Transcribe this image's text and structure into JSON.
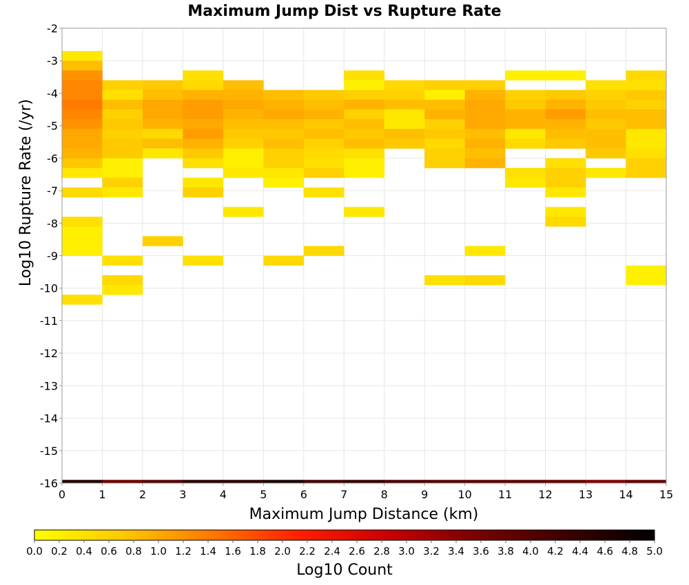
{
  "chart_data": {
    "type": "heatmap",
    "title": "Maximum Jump Dist vs Rupture Rate",
    "xlabel": "Maximum Jump Distance (km)",
    "ylabel": "Log10 Rupture Rate (/yr)",
    "xlim": [
      0,
      15
    ],
    "ylim": [
      -16,
      -2
    ],
    "x_ticks": [
      "0",
      "1",
      "2",
      "3",
      "4",
      "5",
      "6",
      "7",
      "8",
      "9",
      "10",
      "11",
      "12",
      "13",
      "14",
      "15"
    ],
    "y_ticks": [
      "-2",
      "-3",
      "-4",
      "-5",
      "-6",
      "-7",
      "-8",
      "-9",
      "-10",
      "-11",
      "-12",
      "-13",
      "-14",
      "-15",
      "-16"
    ],
    "x_bin_width": 1,
    "y_bin_width": 0.3,
    "grid": true,
    "colorbar": {
      "label": "Log10 Count",
      "range": [
        0,
        5
      ],
      "colors": [
        "#ffff00",
        "#ffc800",
        "#ff7800",
        "#ff1e00",
        "#c80000",
        "#780000",
        "#3c0000",
        "#000000"
      ],
      "ticks": [
        "0.0",
        "0.2",
        "0.4",
        "0.6",
        "0.8",
        "1.0",
        "1.2",
        "1.4",
        "1.6",
        "1.8",
        "2.0",
        "2.2",
        "2.4",
        "2.6",
        "2.8",
        "3.0",
        "3.2",
        "3.4",
        "3.6",
        "3.8",
        "4.0",
        "4.2",
        "4.4",
        "4.6",
        "4.8",
        "5.0"
      ]
    },
    "cells": [
      [
        0,
        -3.0,
        0.3
      ],
      [
        0,
        -3.3,
        0.8
      ],
      [
        0,
        -3.6,
        1.2
      ],
      [
        0,
        -3.9,
        1.3
      ],
      [
        0,
        -4.2,
        1.3
      ],
      [
        0,
        -4.5,
        1.4
      ],
      [
        0,
        -4.8,
        1.3
      ],
      [
        0,
        -5.1,
        1.2
      ],
      [
        0,
        -5.4,
        1.0
      ],
      [
        0,
        -5.7,
        1.0
      ],
      [
        0,
        -6.0,
        0.9
      ],
      [
        0,
        -6.3,
        0.7
      ],
      [
        0,
        -6.6,
        0.3
      ],
      [
        0,
        -7.2,
        0.5
      ],
      [
        0,
        -8.1,
        0.4
      ],
      [
        0,
        -8.4,
        0.2
      ],
      [
        0,
        -8.7,
        0.2
      ],
      [
        0,
        -9.0,
        0.2
      ],
      [
        0,
        -10.5,
        0.4
      ],
      [
        1,
        -3.9,
        0.6
      ],
      [
        1,
        -4.2,
        0.4
      ],
      [
        1,
        -4.5,
        0.8
      ],
      [
        1,
        -4.8,
        0.6
      ],
      [
        1,
        -5.1,
        0.7
      ],
      [
        1,
        -5.4,
        0.6
      ],
      [
        1,
        -5.7,
        0.7
      ],
      [
        1,
        -6.0,
        0.7
      ],
      [
        1,
        -6.3,
        0.2
      ],
      [
        1,
        -6.6,
        0.2
      ],
      [
        1,
        -6.9,
        0.6
      ],
      [
        1,
        -7.2,
        0.3
      ],
      [
        1,
        -9.3,
        0.4
      ],
      [
        1,
        -9.9,
        0.5
      ],
      [
        1,
        -10.2,
        0.3
      ],
      [
        2,
        -3.9,
        0.7
      ],
      [
        2,
        -4.2,
        0.8
      ],
      [
        2,
        -4.5,
        1.0
      ],
      [
        2,
        -4.8,
        1.0
      ],
      [
        2,
        -5.1,
        0.9
      ],
      [
        2,
        -5.4,
        0.5
      ],
      [
        2,
        -5.7,
        0.8
      ],
      [
        2,
        -6.0,
        0.3
      ],
      [
        2,
        -8.7,
        0.6
      ],
      [
        3,
        -3.6,
        0.4
      ],
      [
        3,
        -3.9,
        0.5
      ],
      [
        3,
        -4.2,
        0.9
      ],
      [
        3,
        -4.5,
        1.1
      ],
      [
        3,
        -4.8,
        1.1
      ],
      [
        3,
        -5.1,
        1.0
      ],
      [
        3,
        -5.4,
        1.1
      ],
      [
        3,
        -5.7,
        0.9
      ],
      [
        3,
        -6.0,
        0.7
      ],
      [
        3,
        -6.3,
        0.4
      ],
      [
        3,
        -6.9,
        0.3
      ],
      [
        3,
        -7.2,
        0.6
      ],
      [
        3,
        -9.3,
        0.4
      ],
      [
        4,
        -3.9,
        0.8
      ],
      [
        4,
        -4.2,
        0.9
      ],
      [
        4,
        -4.5,
        1.0
      ],
      [
        4,
        -4.8,
        0.9
      ],
      [
        4,
        -5.1,
        0.8
      ],
      [
        4,
        -5.4,
        0.7
      ],
      [
        4,
        -5.7,
        0.6
      ],
      [
        4,
        -6.0,
        0.2
      ],
      [
        4,
        -6.3,
        0.2
      ],
      [
        4,
        -6.6,
        0.3
      ],
      [
        4,
        -7.8,
        0.3
      ],
      [
        5,
        -4.2,
        0.8
      ],
      [
        5,
        -4.5,
        0.9
      ],
      [
        5,
        -4.8,
        1.0
      ],
      [
        5,
        -5.1,
        0.8
      ],
      [
        5,
        -5.4,
        0.7
      ],
      [
        5,
        -5.7,
        0.8
      ],
      [
        5,
        -6.0,
        0.6
      ],
      [
        5,
        -6.3,
        0.6
      ],
      [
        5,
        -6.6,
        0.3
      ],
      [
        5,
        -6.9,
        0.2
      ],
      [
        5,
        -9.3,
        0.5
      ],
      [
        6,
        -4.2,
        0.7
      ],
      [
        6,
        -4.5,
        0.8
      ],
      [
        6,
        -4.8,
        0.9
      ],
      [
        6,
        -5.1,
        0.7
      ],
      [
        6,
        -5.4,
        0.8
      ],
      [
        6,
        -5.7,
        0.6
      ],
      [
        6,
        -6.0,
        0.5
      ],
      [
        6,
        -6.3,
        0.4
      ],
      [
        6,
        -6.6,
        0.6
      ],
      [
        6,
        -7.2,
        0.4
      ],
      [
        6,
        -9.0,
        0.5
      ],
      [
        7,
        -3.6,
        0.4
      ],
      [
        7,
        -3.9,
        0.2
      ],
      [
        7,
        -4.2,
        0.6
      ],
      [
        7,
        -4.5,
        0.9
      ],
      [
        7,
        -4.8,
        0.6
      ],
      [
        7,
        -5.1,
        0.8
      ],
      [
        7,
        -5.4,
        0.7
      ],
      [
        7,
        -5.7,
        0.8
      ],
      [
        7,
        -6.0,
        0.4
      ],
      [
        7,
        -6.3,
        0.2
      ],
      [
        7,
        -6.6,
        0.2
      ],
      [
        7,
        -7.8,
        0.3
      ],
      [
        8,
        -3.9,
        0.5
      ],
      [
        8,
        -4.2,
        0.6
      ],
      [
        8,
        -4.5,
        0.8
      ],
      [
        8,
        -4.8,
        0.3
      ],
      [
        8,
        -5.1,
        0.3
      ],
      [
        8,
        -5.4,
        0.8
      ],
      [
        8,
        -5.7,
        0.7
      ],
      [
        9,
        -3.9,
        0.6
      ],
      [
        9,
        -4.2,
        0.2
      ],
      [
        9,
        -4.5,
        0.8
      ],
      [
        9,
        -4.8,
        0.9
      ],
      [
        9,
        -5.1,
        0.6
      ],
      [
        9,
        -5.4,
        0.7
      ],
      [
        9,
        -5.7,
        0.5
      ],
      [
        9,
        -6.0,
        0.6
      ],
      [
        9,
        -6.3,
        0.6
      ],
      [
        9,
        -9.9,
        0.4
      ],
      [
        10,
        -3.9,
        0.6
      ],
      [
        10,
        -4.2,
        0.9
      ],
      [
        10,
        -4.5,
        1.0
      ],
      [
        10,
        -4.8,
        1.0
      ],
      [
        10,
        -5.1,
        1.0
      ],
      [
        10,
        -5.4,
        0.8
      ],
      [
        10,
        -5.7,
        0.9
      ],
      [
        10,
        -6.0,
        0.8
      ],
      [
        10,
        -6.3,
        0.9
      ],
      [
        10,
        -9.0,
        0.3
      ],
      [
        10,
        -9.9,
        0.5
      ],
      [
        11,
        -3.6,
        0.2
      ],
      [
        11,
        -4.2,
        0.6
      ],
      [
        11,
        -4.5,
        0.7
      ],
      [
        11,
        -4.8,
        0.9
      ],
      [
        11,
        -5.1,
        0.9
      ],
      [
        11,
        -5.4,
        0.3
      ],
      [
        11,
        -5.7,
        0.5
      ],
      [
        11,
        -6.6,
        0.4
      ],
      [
        11,
        -6.9,
        0.3
      ],
      [
        12,
        -3.6,
        0.2
      ],
      [
        12,
        -4.2,
        0.7
      ],
      [
        12,
        -4.5,
        0.9
      ],
      [
        12,
        -4.8,
        1.1
      ],
      [
        12,
        -5.1,
        0.9
      ],
      [
        12,
        -5.4,
        0.8
      ],
      [
        12,
        -5.7,
        0.7
      ],
      [
        12,
        -6.3,
        0.4
      ],
      [
        12,
        -6.6,
        0.6
      ],
      [
        12,
        -6.9,
        0.6
      ],
      [
        12,
        -7.2,
        0.3
      ],
      [
        12,
        -7.8,
        0.3
      ],
      [
        12,
        -8.1,
        0.5
      ],
      [
        13,
        -3.9,
        0.4
      ],
      [
        13,
        -4.2,
        0.6
      ],
      [
        13,
        -4.5,
        0.7
      ],
      [
        13,
        -4.8,
        0.8
      ],
      [
        13,
        -5.1,
        0.7
      ],
      [
        13,
        -5.4,
        0.8
      ],
      [
        13,
        -5.7,
        0.8
      ],
      [
        13,
        -6.0,
        0.7
      ],
      [
        13,
        -6.6,
        0.3
      ],
      [
        14,
        -3.6,
        0.5
      ],
      [
        14,
        -3.9,
        0.4
      ],
      [
        14,
        -4.2,
        0.7
      ],
      [
        14,
        -4.5,
        0.6
      ],
      [
        14,
        -4.8,
        0.8
      ],
      [
        14,
        -5.1,
        0.8
      ],
      [
        14,
        -5.4,
        0.3
      ],
      [
        14,
        -5.7,
        0.3
      ],
      [
        14,
        -6.0,
        0.4
      ],
      [
        14,
        -6.3,
        0.6
      ],
      [
        14,
        -6.6,
        0.6
      ],
      [
        14,
        -9.6,
        0.2
      ],
      [
        14,
        -9.9,
        0.2
      ],
      [
        0,
        -16.2,
        4.6
      ],
      [
        1,
        -16.2,
        3.7
      ],
      [
        2,
        -16.2,
        4.0
      ],
      [
        3,
        -16.2,
        4.5
      ],
      [
        4,
        -16.2,
        4.5
      ],
      [
        5,
        -16.2,
        4.7
      ],
      [
        6,
        -16.2,
        4.2
      ],
      [
        7,
        -16.2,
        4.4
      ],
      [
        8,
        -16.2,
        4.1
      ],
      [
        9,
        -16.2,
        4.0
      ],
      [
        10,
        -16.2,
        3.9
      ],
      [
        11,
        -16.2,
        3.9
      ],
      [
        12,
        -16.2,
        3.8
      ],
      [
        13,
        -16.2,
        3.5
      ],
      [
        14,
        -16.2,
        3.8
      ]
    ]
  }
}
